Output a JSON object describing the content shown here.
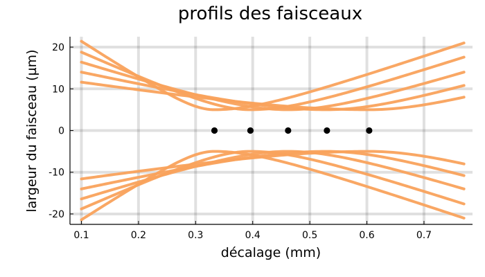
{
  "chart_data": {
    "type": "line",
    "title": "profils des faisceaux",
    "xlabel": "décalage (mm)",
    "ylabel": "largeur du faisceau (µm)",
    "xlim": [
      0.08,
      0.785
    ],
    "ylim": [
      -22.5,
      22.5
    ],
    "xticks": [
      0.1,
      0.2,
      0.3,
      0.4,
      0.5,
      0.6,
      0.7
    ],
    "xtick_labels": [
      "0.1",
      "0.2",
      "0.3",
      "0.4",
      "0.5",
      "0.6",
      "0.7"
    ],
    "yticks": [
      -20,
      -10,
      0,
      10,
      20
    ],
    "ytick_labels": [
      "-20",
      "-10",
      "0",
      "10",
      "20"
    ],
    "grid": true,
    "legend": "none",
    "colors": {
      "beam": "#f9a25c",
      "waist": "#000000"
    },
    "beam_waist_um": 5,
    "x_range_data": [
      0.1,
      0.77
    ],
    "waist_points": {
      "x": [
        0.333,
        0.396,
        0.462,
        0.53,
        0.604
      ],
      "y": [
        0,
        0,
        0,
        0,
        0
      ]
    },
    "series": [
      {
        "waist_x": 0.333,
        "x": [
          0.1,
          0.77
        ],
        "upper": [
          21.4,
          21.0
        ],
        "lower": [
          -21.4,
          -21.0
        ]
      },
      {
        "waist_x": 0.396,
        "x": [
          0.1,
          0.77
        ],
        "upper": [
          18.8,
          17.6
        ],
        "lower": [
          -18.8,
          -17.6
        ]
      },
      {
        "waist_x": 0.462,
        "x": [
          0.1,
          0.77
        ],
        "upper": [
          16.4,
          14.0
        ],
        "lower": [
          -16.4,
          -14.0
        ]
      },
      {
        "waist_x": 0.53,
        "x": [
          0.1,
          0.77
        ],
        "upper": [
          14.0,
          10.8
        ],
        "lower": [
          -14.0,
          -10.8
        ]
      },
      {
        "waist_x": 0.604,
        "x": [
          0.1,
          0.77
        ],
        "upper": [
          11.6,
          8.0
        ],
        "lower": [
          -11.6,
          -8.0
        ]
      }
    ]
  }
}
